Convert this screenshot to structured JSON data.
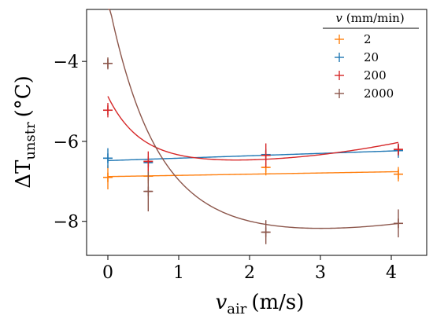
{
  "chart_data": {
    "type": "scatter",
    "x_label_main": "v",
    "x_label_sub": "air",
    "x_label_unit": "(m/s)",
    "y_label_main": "ΔT",
    "y_label_sub": "unstr",
    "y_label_unit": "(°C)",
    "xlim": [
      -0.3,
      4.5
    ],
    "ylim": [
      -8.85,
      -2.7
    ],
    "x_ticks": [
      0,
      1,
      2,
      3,
      4
    ],
    "x_tick_labels": [
      "0",
      "1",
      "2",
      "3",
      "4"
    ],
    "y_ticks": [
      -8,
      -6,
      -4
    ],
    "y_tick_labels": [
      "−8",
      "−6",
      "−4"
    ],
    "legend": {
      "title_var": "v",
      "title_unit": "(mm/min)",
      "placement": "top-right"
    },
    "grid": false,
    "series": [
      {
        "name": "2",
        "color": "#ff7f0e",
        "x": [
          0,
          0.57,
          2.23,
          4.1
        ],
        "y": [
          -6.9,
          -6.87,
          -6.65,
          -6.82
        ],
        "yerr": [
          0.3,
          0.18,
          0.2,
          0.18
        ],
        "xerr": [
          0.05,
          0.05,
          0.05,
          0.05
        ],
        "fit": {
          "model": "linear",
          "a": -6.88,
          "b": 0.03
        }
      },
      {
        "name": "20",
        "color": "#1f77b4",
        "x": [
          0,
          0.57,
          2.23,
          4.1
        ],
        "y": [
          -6.42,
          -6.53,
          -6.33,
          -6.23
        ],
        "yerr": [
          0.25,
          0.15,
          0.15,
          0.18
        ],
        "xerr": [
          0.05,
          0.05,
          0.05,
          0.05
        ],
        "fit": {
          "model": "linear",
          "a": -6.48,
          "b": 0.06
        }
      },
      {
        "name": "200",
        "color": "#d62728",
        "x": [
          0,
          0.57,
          2.23,
          4.1
        ],
        "y": [
          -5.22,
          -6.5,
          -6.35,
          -6.2
        ],
        "yerr": [
          0.18,
          0.25,
          0.3,
          0.15
        ],
        "xerr": [
          0.05,
          0.05,
          0.05,
          0.05
        ],
        "fit": {
          "model": "exp_quad",
          "a": -6.5,
          "b": 1.5,
          "k": 2.3,
          "c": 0.065,
          "x0": 1.4
        }
      },
      {
        "name": "2000",
        "color": "#8c564b",
        "x": [
          0,
          0.57,
          2.23,
          4.1
        ],
        "y": [
          -4.05,
          -7.25,
          -8.27,
          -8.05
        ],
        "yerr": [
          0.15,
          0.5,
          0.3,
          0.35
        ],
        "xerr": [
          0.05,
          0.05,
          0.05,
          0.05
        ],
        "fit": {
          "model": "exp_quad",
          "a": -8.25,
          "b": 5.45,
          "k": 1.55,
          "c": 0.065,
          "x0": 2.4
        }
      }
    ]
  }
}
